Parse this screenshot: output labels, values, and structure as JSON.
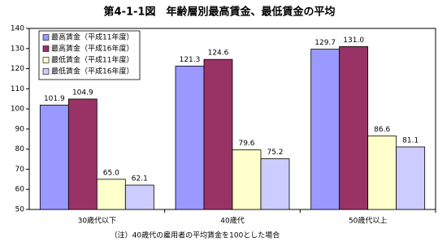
{
  "chart_data": {
    "type": "bar",
    "title": "第4-1-1図　年齢層別最高賃金、最低賃金の平均",
    "categories": [
      "30歳代以下",
      "40歳代",
      "50歳代以上"
    ],
    "series": [
      {
        "name": "最高賃金（平成11年度）",
        "color": "#9999ff",
        "values": [
          101.9,
          121.3,
          129.7
        ],
        "value_labels": [
          "101.9",
          "121.3",
          "129.7"
        ]
      },
      {
        "name": "最高賃金（平成16年度）",
        "color": "#993366",
        "values": [
          104.9,
          124.6,
          131.0
        ],
        "value_labels": [
          "104.9",
          "124.6",
          "131.0"
        ]
      },
      {
        "name": "最低賃金（平成11年度）",
        "color": "#ffffcc",
        "values": [
          65.0,
          79.6,
          86.6
        ],
        "value_labels": [
          "65.0",
          "79.6",
          "86.6"
        ]
      },
      {
        "name": "最低賃金（平成16年度）",
        "color": "#ccccff",
        "values": [
          62.1,
          75.2,
          81.1
        ],
        "value_labels": [
          "62.1",
          "75.2",
          "81.1"
        ]
      }
    ],
    "ylim": [
      50,
      140
    ],
    "yticks": [
      50,
      60,
      70,
      80,
      90,
      100,
      110,
      120,
      130,
      140
    ],
    "legend": "upper left",
    "note": "（注）40歳代の雇用者の平均賃金を100とした場合"
  }
}
